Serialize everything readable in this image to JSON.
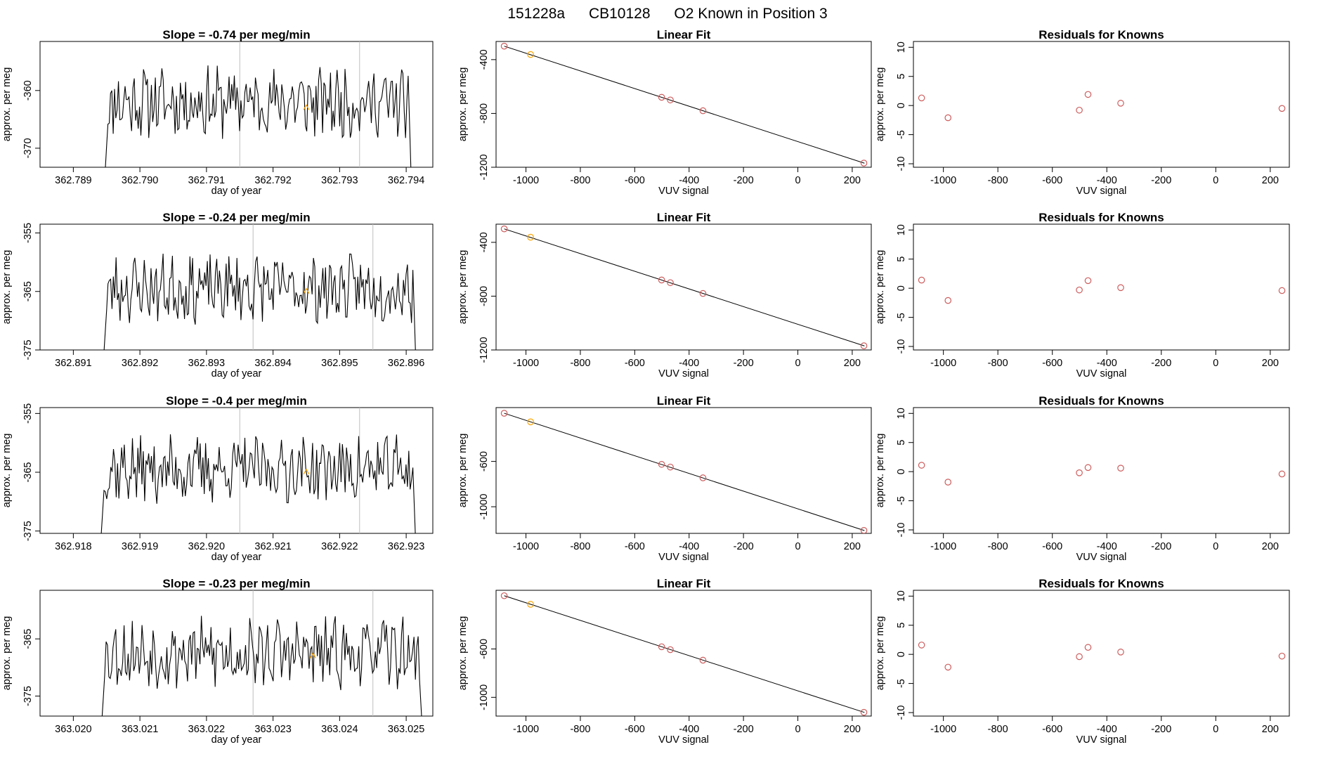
{
  "figure": {
    "title_parts": [
      "151228a",
      "CB10128",
      "O2 Known in Position  3"
    ]
  },
  "colors": {
    "axis": "#000000",
    "trace": "#000000",
    "vline": "#bebebe",
    "highlight": "#ffa500",
    "knowns": "#cd5c5c"
  },
  "chart_data": [
    {
      "row": 0,
      "panels": [
        {
          "type": "line",
          "title": "Slope =  -0.74  per meg/min",
          "xlabel": "day of year",
          "ylabel": "approx. per meg",
          "xlim": [
            362.7885,
            362.7944
          ],
          "ylim": [
            -373.3,
            -351.5
          ],
          "x_ticks": [
            "362.789",
            "362.790",
            "362.791",
            "362.792",
            "362.793",
            "362.794"
          ],
          "x_tick_values": [
            362.789,
            362.79,
            362.791,
            362.792,
            362.793,
            362.794
          ],
          "y_ticks": [
            "-360",
            "-370"
          ],
          "y_tick_values": [
            -360,
            -370
          ],
          "vlines": [
            362.7915,
            362.7933
          ],
          "start": 362.78948,
          "end": 362.79403,
          "level": -362,
          "amp": 3.2,
          "seed": 11,
          "highlight_point": [
            362.7925,
            -363
          ]
        },
        {
          "type": "scatter",
          "title": "Linear Fit",
          "xlabel": "VUV signal",
          "ylabel": "approx. per meg",
          "xlim": [
            -1110,
            270
          ],
          "ylim": [
            -1200,
            -265
          ],
          "x_ticks": [
            "-1000",
            "-800",
            "-600",
            "-400",
            "-200",
            "0",
            "200"
          ],
          "x_tick_values": [
            -1000,
            -800,
            -600,
            -400,
            -200,
            0,
            200
          ],
          "y_ticks": [
            "-400",
            "-800",
            "-1200"
          ],
          "y_tick_values": [
            -400,
            -800,
            -1200
          ],
          "line": [
            [
              -1080,
              -300
            ],
            [
              245,
              -1170
            ]
          ],
          "points": [
            [
              -1080,
              -300
            ],
            [
              -983,
              -362
            ],
            [
              -501,
              -680
            ],
            [
              -469,
              -700
            ],
            [
              -349,
              -780
            ],
            [
              243,
              -1169
            ]
          ],
          "highlight_index": 1
        },
        {
          "type": "scatter",
          "title": "Residuals for Knowns",
          "xlabel": "VUV signal",
          "ylabel": "approx. per meg",
          "xlim": [
            -1110,
            270
          ],
          "ylim": [
            -10.6,
            11
          ],
          "x_ticks": [
            "-1000",
            "-800",
            "-600",
            "-400",
            "-200",
            "0",
            "200"
          ],
          "x_tick_values": [
            -1000,
            -800,
            -600,
            -400,
            -200,
            0,
            200
          ],
          "y_ticks": [
            "10",
            "5",
            "0",
            "-5",
            "-10"
          ],
          "y_tick_values": [
            10,
            5,
            0,
            -5,
            -10
          ],
          "points": [
            [
              -1080,
              1.3
            ],
            [
              -983,
              -2.1
            ],
            [
              -501,
              -0.8
            ],
            [
              -469,
              1.9
            ],
            [
              -349,
              0.4
            ],
            [
              243,
              -0.5
            ]
          ]
        }
      ]
    },
    {
      "row": 1,
      "panels": [
        {
          "type": "line",
          "title": "Slope =  -0.24  per meg/min",
          "xlabel": "day of year",
          "ylabel": "approx. per meg",
          "xlim": [
            362.8905,
            362.8964
          ],
          "ylim": [
            -375,
            -353.5
          ],
          "x_ticks": [
            "362.891",
            "362.892",
            "362.893",
            "362.894",
            "362.895",
            "362.896"
          ],
          "x_tick_values": [
            362.891,
            362.892,
            362.893,
            362.894,
            362.895,
            362.896
          ],
          "y_ticks": [
            "-355",
            "-365",
            "-375"
          ],
          "y_tick_values": [
            -355,
            -365,
            -375
          ],
          "vlines": [
            362.8937,
            362.8955
          ],
          "start": 362.89146,
          "end": 362.8961,
          "level": -364.5,
          "amp": 3.0,
          "seed": 23,
          "highlight_point": [
            362.8945,
            -365
          ]
        },
        {
          "type": "scatter",
          "title": "Linear Fit",
          "xlabel": "VUV signal",
          "ylabel": "approx. per meg",
          "xlim": [
            -1110,
            270
          ],
          "ylim": [
            -1200,
            -265
          ],
          "x_ticks": [
            "-1000",
            "-800",
            "-600",
            "-400",
            "-200",
            "0",
            "200"
          ],
          "x_tick_values": [
            -1000,
            -800,
            -600,
            -400,
            -200,
            0,
            200
          ],
          "y_ticks": [
            "-400",
            "-800",
            "-1200"
          ],
          "y_tick_values": [
            -400,
            -800,
            -1200
          ],
          "line": [
            [
              -1080,
              -300
            ],
            [
              245,
              -1170
            ]
          ],
          "points": [
            [
              -1080,
              -300
            ],
            [
              -983,
              -362
            ],
            [
              -501,
              -680
            ],
            [
              -469,
              -700
            ],
            [
              -349,
              -780
            ],
            [
              243,
              -1169
            ]
          ],
          "highlight_index": 1
        },
        {
          "type": "scatter",
          "title": "Residuals for Knowns",
          "xlabel": "VUV signal",
          "ylabel": "approx. per meg",
          "xlim": [
            -1110,
            270
          ],
          "ylim": [
            -10.6,
            11
          ],
          "x_ticks": [
            "-1000",
            "-800",
            "-600",
            "-400",
            "-200",
            "0",
            "200"
          ],
          "x_tick_values": [
            -1000,
            -800,
            -600,
            -400,
            -200,
            0,
            200
          ],
          "y_ticks": [
            "10",
            "5",
            "0",
            "-5",
            "-10"
          ],
          "y_tick_values": [
            10,
            5,
            0,
            -5,
            -10
          ],
          "points": [
            [
              -1080,
              1.4
            ],
            [
              -983,
              -2.1
            ],
            [
              -501,
              -0.3
            ],
            [
              -469,
              1.3
            ],
            [
              -349,
              0.1
            ],
            [
              243,
              -0.4
            ]
          ]
        }
      ]
    },
    {
      "row": 2,
      "panels": [
        {
          "type": "line",
          "title": "Slope =  -0.4  per meg/min",
          "xlabel": "day of year",
          "ylabel": "approx. per meg",
          "xlim": [
            362.9175,
            362.9234
          ],
          "ylim": [
            -375.4,
            -354
          ],
          "x_ticks": [
            "362.918",
            "362.919",
            "362.920",
            "362.921",
            "362.922",
            "362.923"
          ],
          "x_tick_values": [
            362.918,
            362.919,
            362.92,
            362.921,
            362.922,
            362.923
          ],
          "y_ticks": [
            "-355",
            "-365",
            "-375"
          ],
          "y_tick_values": [
            -355,
            -365,
            -375
          ],
          "vlines": [
            362.9205,
            362.9223
          ],
          "start": 362.91842,
          "end": 362.9231,
          "level": -364.5,
          "amp": 3.0,
          "seed": 37,
          "highlight_point": [
            362.9215,
            -365
          ]
        },
        {
          "type": "scatter",
          "title": "Linear Fit",
          "xlabel": "VUV signal",
          "ylabel": "approx. per meg",
          "xlim": [
            -1110,
            270
          ],
          "ylim": [
            -1235,
            -125
          ],
          "x_ticks": [
            "-1000",
            "-800",
            "-600",
            "-400",
            "-200",
            "0",
            "200"
          ],
          "x_tick_values": [
            -1000,
            -800,
            -600,
            -400,
            -200,
            0,
            200
          ],
          "y_ticks": [
            "-600",
            "-1000"
          ],
          "y_tick_values": [
            -600,
            -1000
          ],
          "line": [
            [
              -1080,
              -175
            ],
            [
              245,
              -1210
            ]
          ],
          "points": [
            [
              -1080,
              -175
            ],
            [
              -983,
              -251
            ],
            [
              -501,
              -626
            ],
            [
              -469,
              -650
            ],
            [
              -349,
              -745
            ],
            [
              243,
              -1209
            ]
          ],
          "highlight_index": 1
        },
        {
          "type": "scatter",
          "title": "Residuals for Knowns",
          "xlabel": "VUV signal",
          "ylabel": "approx. per meg",
          "xlim": [
            -1110,
            270
          ],
          "ylim": [
            -10.6,
            11
          ],
          "x_ticks": [
            "-1000",
            "-800",
            "-600",
            "-400",
            "-200",
            "0",
            "200"
          ],
          "x_tick_values": [
            -1000,
            -800,
            -600,
            -400,
            -200,
            0,
            200
          ],
          "y_ticks": [
            "10",
            "5",
            "0",
            "-5",
            "-10"
          ],
          "y_tick_values": [
            10,
            5,
            0,
            -5,
            -10
          ],
          "points": [
            [
              -1080,
              1.1
            ],
            [
              -983,
              -1.8
            ],
            [
              -501,
              -0.2
            ],
            [
              -469,
              0.7
            ],
            [
              -349,
              0.6
            ],
            [
              243,
              -0.4
            ]
          ]
        }
      ]
    },
    {
      "row": 3,
      "panels": [
        {
          "type": "line",
          "title": "Slope =  -0.23  per meg/min",
          "xlabel": "day of year",
          "ylabel": "approx. per meg",
          "xlim": [
            363.0195,
            363.0254
          ],
          "ylim": [
            -378.5,
            -356.5
          ],
          "x_ticks": [
            "363.020",
            "363.021",
            "363.022",
            "363.023",
            "363.024",
            "363.025"
          ],
          "x_tick_values": [
            363.02,
            363.021,
            363.022,
            363.023,
            363.024,
            363.025
          ],
          "y_ticks": [
            "-365",
            "-375"
          ],
          "y_tick_values": [
            -365,
            -375
          ],
          "vlines": [
            363.0227,
            363.0245
          ],
          "start": 363.02043,
          "end": 363.0252,
          "level": -367.5,
          "amp": 3.2,
          "seed": 53,
          "highlight_point": [
            363.0236,
            -368
          ]
        },
        {
          "type": "scatter",
          "title": "Linear Fit",
          "xlabel": "VUV signal",
          "ylabel": "approx. per meg",
          "xlim": [
            -1110,
            270
          ],
          "ylim": [
            -1155,
            -115
          ],
          "x_ticks": [
            "-1000",
            "-800",
            "-600",
            "-400",
            "-200",
            "0",
            "200"
          ],
          "x_tick_values": [
            -1000,
            -800,
            -600,
            -400,
            -200,
            0,
            200
          ],
          "y_ticks": [
            "-600",
            "-1000"
          ],
          "y_tick_values": [
            -600,
            -1000
          ],
          "line": [
            [
              -1080,
              -160
            ],
            [
              245,
              -1125
            ]
          ],
          "points": [
            [
              -1080,
              -160
            ],
            [
              -983,
              -231
            ],
            [
              -501,
              -582
            ],
            [
              -469,
              -606
            ],
            [
              -349,
              -693
            ],
            [
              243,
              -1124
            ]
          ],
          "highlight_index": 1
        },
        {
          "type": "scatter",
          "title": "Residuals for Knowns",
          "xlabel": "VUV signal",
          "ylabel": "approx. per meg",
          "xlim": [
            -1110,
            270
          ],
          "ylim": [
            -10.6,
            11
          ],
          "x_ticks": [
            "-1000",
            "-800",
            "-600",
            "-400",
            "-200",
            "0",
            "200"
          ],
          "x_tick_values": [
            -1000,
            -800,
            -600,
            -400,
            -200,
            0,
            200
          ],
          "y_ticks": [
            "10",
            "5",
            "0",
            "-5",
            "-10"
          ],
          "y_tick_values": [
            10,
            5,
            0,
            -5,
            -10
          ],
          "points": [
            [
              -1080,
              1.6
            ],
            [
              -983,
              -2.2
            ],
            [
              -501,
              -0.4
            ],
            [
              -469,
              1.2
            ],
            [
              -349,
              0.4
            ],
            [
              243,
              -0.3
            ]
          ]
        }
      ]
    }
  ]
}
